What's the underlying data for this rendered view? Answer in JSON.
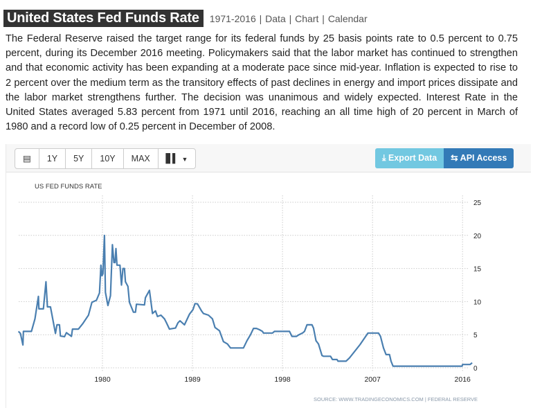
{
  "header": {
    "title": "United States Fed Funds Rate",
    "links": [
      "1971-2016",
      "Data",
      "Chart",
      "Calendar"
    ],
    "separator": "|"
  },
  "description": "The Federal Reserve raised the target range for its federal funds by 25 basis points rate to 0.5 percent to 0.75 percent, during its December 2016 meeting. Policymakers said that the labor market has continued to strengthen and that economic activity has been expanding at a moderate pace since mid-year. Inflation is expected to rise to 2 percent over the medium term as the transitory effects of past declines in energy and import prices dissipate and the labor market strengthens further. The decision was unanimous and widely expected. Interest Rate in the United States averaged 5.83 percent from 1971 until 2016, reaching an all time high of 20 percent in March of 1980 and a record low of 0.25 percent in December of 2008.",
  "toolbar": {
    "calendar_icon": "calendar-icon",
    "ranges": [
      "1Y",
      "5Y",
      "10Y",
      "MAX"
    ],
    "chart_type_icon": "bar-chart-icon",
    "export_label": "Export Data",
    "api_label": "API Access",
    "export_color": "#5bc0de",
    "api_color": "#337ab7"
  },
  "chart_data": {
    "type": "line",
    "title": "US FED FUNDS RATE",
    "source": "SOURCE: WWW.TRADINGECONOMICS.COM | FEDERAL RESERVE",
    "line_color": "#4a7fb0",
    "x_ticks": [
      "1980",
      "1989",
      "1998",
      "2007",
      "2016"
    ],
    "y_ticks": [
      0,
      5,
      10,
      15,
      20,
      25
    ],
    "xlim": [
      1971.6,
      2017.0
    ],
    "ylim": [
      0,
      25
    ],
    "grid": true,
    "y_axis_side": "right",
    "points": [
      [
        1971.6,
        5.5
      ],
      [
        1971.8,
        5.2
      ],
      [
        1972.05,
        3.45
      ],
      [
        1972.1,
        5.5
      ],
      [
        1972.9,
        5.5
      ],
      [
        1973.25,
        7.4
      ],
      [
        1973.6,
        10.8
      ],
      [
        1973.65,
        8.9
      ],
      [
        1974.1,
        8.9
      ],
      [
        1974.35,
        13.0
      ],
      [
        1974.5,
        9.2
      ],
      [
        1974.8,
        9.2
      ],
      [
        1975.3,
        5.2
      ],
      [
        1975.45,
        6.5
      ],
      [
        1975.7,
        6.5
      ],
      [
        1975.8,
        4.8
      ],
      [
        1976.2,
        4.7
      ],
      [
        1976.4,
        5.3
      ],
      [
        1976.9,
        4.75
      ],
      [
        1977.0,
        5.85
      ],
      [
        1977.6,
        5.85
      ],
      [
        1978.05,
        6.7
      ],
      [
        1978.6,
        7.95
      ],
      [
        1978.95,
        9.9
      ],
      [
        1979.4,
        10.2
      ],
      [
        1979.7,
        11.3
      ],
      [
        1979.85,
        15.5
      ],
      [
        1979.95,
        13.9
      ],
      [
        1980.05,
        14.2
      ],
      [
        1980.2,
        20.0
      ],
      [
        1980.3,
        11.4
      ],
      [
        1980.55,
        9.4
      ],
      [
        1980.8,
        10.9
      ],
      [
        1981.0,
        18.6
      ],
      [
        1981.15,
        15.9
      ],
      [
        1981.25,
        15.9
      ],
      [
        1981.35,
        18.0
      ],
      [
        1981.45,
        15.5
      ],
      [
        1981.75,
        15.5
      ],
      [
        1981.9,
        12.5
      ],
      [
        1982.05,
        15.0
      ],
      [
        1982.2,
        15.0
      ],
      [
        1982.3,
        13.0
      ],
      [
        1982.55,
        12.3
      ],
      [
        1982.7,
        9.9
      ],
      [
        1983.1,
        8.4
      ],
      [
        1983.3,
        8.4
      ],
      [
        1983.4,
        9.6
      ],
      [
        1984.2,
        9.5
      ],
      [
        1984.3,
        10.6
      ],
      [
        1984.7,
        11.7
      ],
      [
        1985.0,
        8.2
      ],
      [
        1985.3,
        8.6
      ],
      [
        1985.5,
        7.75
      ],
      [
        1985.85,
        7.95
      ],
      [
        1986.2,
        7.4
      ],
      [
        1986.4,
        6.8
      ],
      [
        1986.7,
        5.85
      ],
      [
        1987.3,
        6.0
      ],
      [
        1987.55,
        6.8
      ],
      [
        1987.75,
        7.1
      ],
      [
        1988.2,
        6.5
      ],
      [
        1988.7,
        8.1
      ],
      [
        1989.05,
        8.8
      ],
      [
        1989.25,
        9.7
      ],
      [
        1989.5,
        9.65
      ],
      [
        1989.9,
        8.6
      ],
      [
        1990.1,
        8.2
      ],
      [
        1990.6,
        7.95
      ],
      [
        1991.0,
        7.4
      ],
      [
        1991.25,
        6.1
      ],
      [
        1991.7,
        5.6
      ],
      [
        1992.1,
        3.95
      ],
      [
        1992.5,
        3.6
      ],
      [
        1992.8,
        3.0
      ],
      [
        1994.1,
        3.0
      ],
      [
        1994.45,
        4.1
      ],
      [
        1994.8,
        5.0
      ],
      [
        1995.1,
        5.95
      ],
      [
        1995.4,
        5.95
      ],
      [
        1995.7,
        5.75
      ],
      [
        1996.0,
        5.5
      ],
      [
        1996.1,
        5.25
      ],
      [
        1997.0,
        5.25
      ],
      [
        1997.2,
        5.5
      ],
      [
        1998.7,
        5.5
      ],
      [
        1998.95,
        4.75
      ],
      [
        1999.4,
        4.75
      ],
      [
        1999.65,
        5.0
      ],
      [
        2000.0,
        5.25
      ],
      [
        2000.2,
        5.5
      ],
      [
        2000.45,
        6.5
      ],
      [
        2000.95,
        6.5
      ],
      [
        2001.1,
        6.0
      ],
      [
        2001.35,
        4.1
      ],
      [
        2001.6,
        3.6
      ],
      [
        2001.95,
        1.85
      ],
      [
        2002.1,
        1.75
      ],
      [
        2002.8,
        1.75
      ],
      [
        2003.0,
        1.25
      ],
      [
        2003.45,
        1.25
      ],
      [
        2003.55,
        1.0
      ],
      [
        2004.35,
        1.0
      ],
      [
        2004.7,
        1.5
      ],
      [
        2005.75,
        3.5
      ],
      [
        2006.55,
        5.25
      ],
      [
        2007.6,
        5.25
      ],
      [
        2007.8,
        4.75
      ],
      [
        2008.1,
        3.0
      ],
      [
        2008.35,
        2.0
      ],
      [
        2008.7,
        2.0
      ],
      [
        2008.85,
        1.0
      ],
      [
        2009.05,
        0.25
      ],
      [
        2015.96,
        0.25
      ],
      [
        2016.0,
        0.5
      ],
      [
        2016.75,
        0.5
      ],
      [
        2016.96,
        0.75
      ]
    ]
  }
}
